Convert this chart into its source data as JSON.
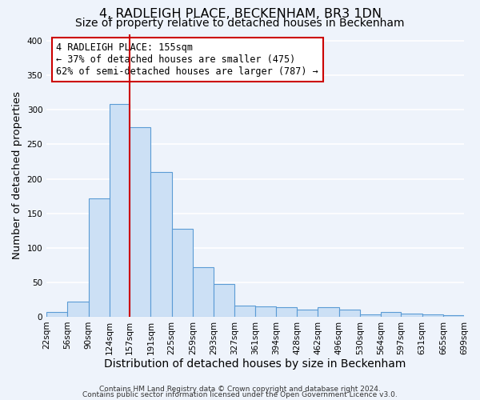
{
  "title": "4, RADLEIGH PLACE, BECKENHAM, BR3 1DN",
  "subtitle": "Size of property relative to detached houses in Beckenham",
  "xlabel": "Distribution of detached houses by size in Beckenham",
  "ylabel": "Number of detached properties",
  "bar_labels": [
    "22sqm",
    "56sqm",
    "90sqm",
    "124sqm",
    "157sqm",
    "191sqm",
    "225sqm",
    "259sqm",
    "293sqm",
    "327sqm",
    "361sqm",
    "394sqm",
    "428sqm",
    "462sqm",
    "496sqm",
    "530sqm",
    "564sqm",
    "597sqm",
    "631sqm",
    "665sqm",
    "699sqm"
  ],
  "bar_values": [
    7,
    22,
    172,
    308,
    275,
    210,
    127,
    72,
    48,
    16,
    15,
    14,
    10,
    14,
    10,
    3,
    7,
    5,
    3,
    2
  ],
  "bin_edges": [
    22,
    56,
    90,
    124,
    157,
    191,
    225,
    259,
    293,
    327,
    361,
    394,
    428,
    462,
    496,
    530,
    564,
    597,
    631,
    665,
    699
  ],
  "bar_color": "#cce0f5",
  "bar_edge_color": "#5b9bd5",
  "vline_x": 157,
  "vline_color": "#cc0000",
  "annotation_line1": "4 RADLEIGH PLACE: 155sqm",
  "annotation_line2": "← 37% of detached houses are smaller (475)",
  "annotation_line3": "62% of semi-detached houses are larger (787) →",
  "annotation_box_edge": "#cc0000",
  "annotation_box_bg": "white",
  "ylim": [
    0,
    410
  ],
  "yticks": [
    0,
    50,
    100,
    150,
    200,
    250,
    300,
    350,
    400
  ],
  "footer1": "Contains HM Land Registry data © Crown copyright and database right 2024.",
  "footer2": "Contains public sector information licensed under the Open Government Licence v3.0.",
  "bg_color": "#eef3fb",
  "grid_color": "white",
  "title_fontsize": 11.5,
  "subtitle_fontsize": 10,
  "axis_label_fontsize": 9.5,
  "tick_fontsize": 7.5,
  "annotation_fontsize": 8.5,
  "footer_fontsize": 6.5
}
